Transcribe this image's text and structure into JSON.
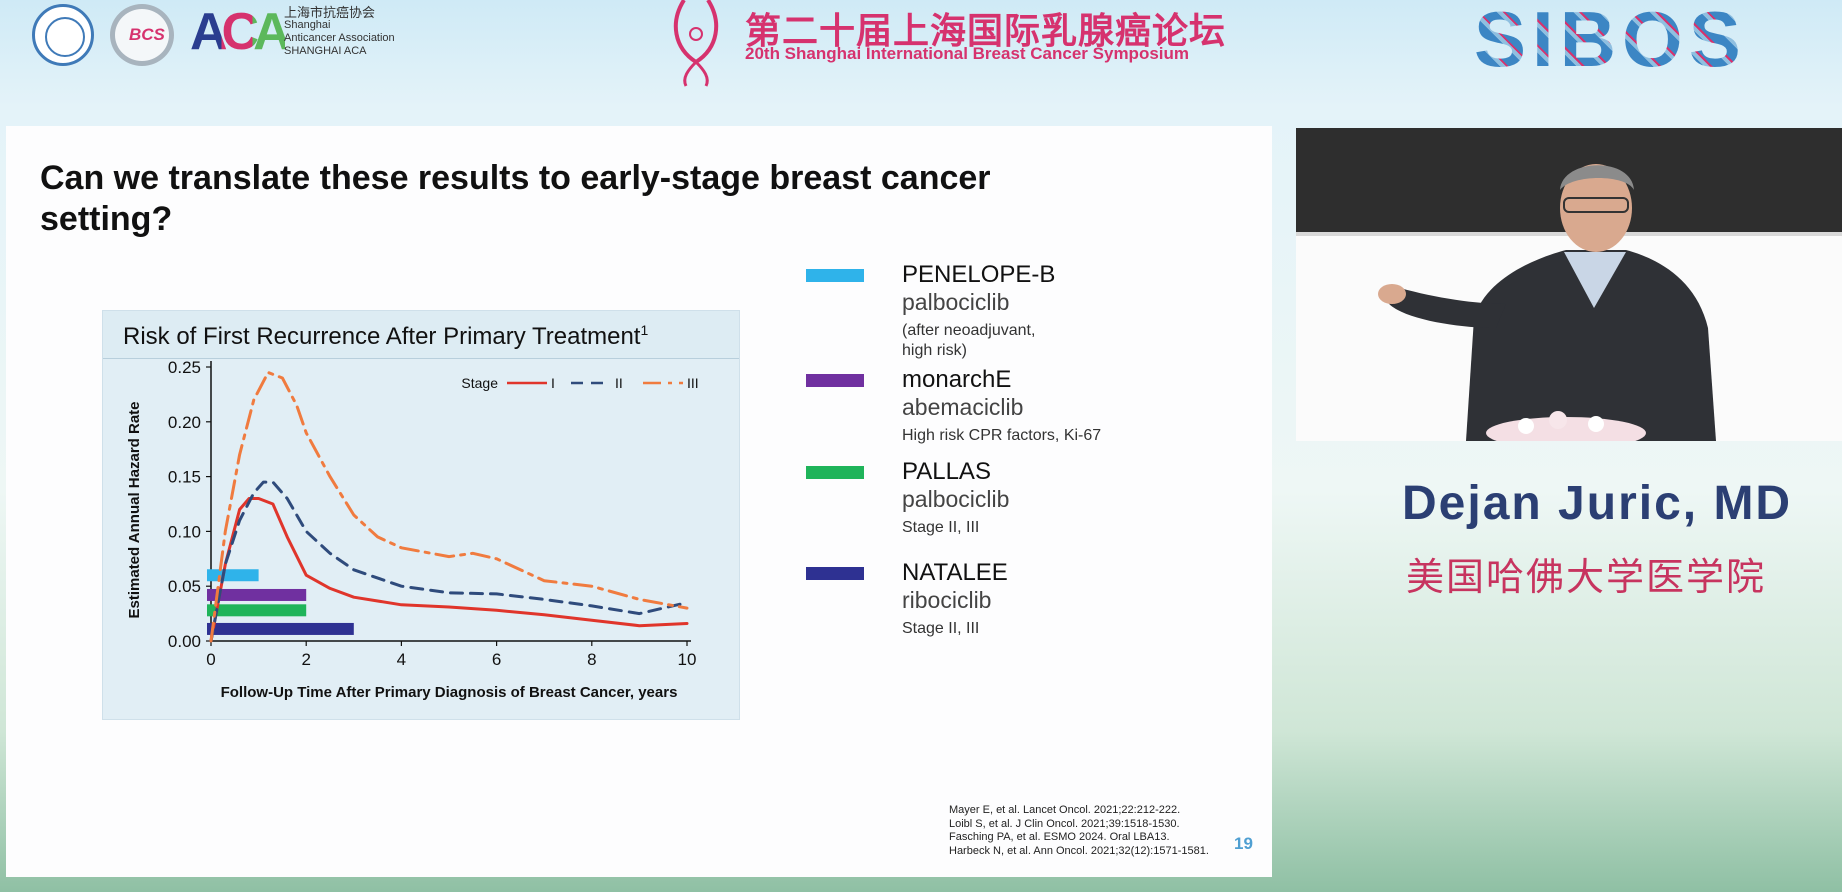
{
  "header": {
    "org_name_cn": "上海市抗癌协会",
    "org_name_en_1": "Shanghai",
    "org_name_en_2": "Anticancer Association",
    "org_name_en_3": "SHANGHAI ACA",
    "bcs_logo_text": "BCS",
    "aca_logo_text": "ACA",
    "symposium_cn": "第二十届上海国际乳腺癌论坛",
    "symposium_en": "20th Shanghai International Breast Cancer Symposium",
    "sibos_logo_text": "SIBOS"
  },
  "slide": {
    "title": "Can we translate these results to early-stage breast cancer setting?",
    "page_number": "19",
    "references": [
      "Mayer E, et al. Lancet Oncol. 2021;22:212-222.",
      "Loibl S, et al. J Clin Oncol. 2021;39:1518-1530.",
      "Fasching PA, et al. ESMO 2024. Oral LBA13.",
      "Harbeck N, et al. Ann Oncol. 2021;32(12):1571-1581."
    ],
    "trials": [
      {
        "name": "PENELOPE-B",
        "drug": "palbociclib",
        "note": "(after neoadjuvant, high risk)",
        "color": "#2fb3ea"
      },
      {
        "name": "monarchE",
        "drug": "abemaciclib",
        "note": "High risk CPR factors, Ki-67",
        "color": "#7030a0"
      },
      {
        "name": "PALLAS",
        "drug": "palbociclib",
        "note": "Stage II, III",
        "color": "#1fb45a"
      },
      {
        "name": "NATALEE",
        "drug": "ribociclib",
        "note": "Stage II, III",
        "color": "#2e3192"
      }
    ]
  },
  "chart_data": {
    "type": "line",
    "title": "Risk of First Recurrence After Primary Treatment",
    "title_superscript": "1",
    "xlabel": "Follow-Up Time After Primary Diagnosis of Breast Cancer, years",
    "ylabel": "Estimated Annual Hazard Rate",
    "xlim": [
      0,
      10
    ],
    "ylim": [
      0,
      0.25
    ],
    "xticks": [
      "0",
      "2",
      "4",
      "6",
      "8",
      "10"
    ],
    "yticks": [
      "0.00",
      "0.05",
      "0.10",
      "0.15",
      "0.20",
      "0.25"
    ],
    "legend_title": "Stage",
    "legend_position": "top-right",
    "series": [
      {
        "name": "I",
        "color": "#e0352b",
        "style": "solid",
        "x": [
          0,
          0.3,
          0.6,
          0.8,
          1.0,
          1.3,
          1.6,
          2.0,
          2.5,
          3.0,
          4.0,
          5.0,
          6.0,
          7.0,
          8.0,
          9.0,
          10.0
        ],
        "y": [
          0.0,
          0.07,
          0.12,
          0.13,
          0.13,
          0.125,
          0.095,
          0.06,
          0.048,
          0.04,
          0.033,
          0.031,
          0.028,
          0.024,
          0.019,
          0.014,
          0.016
        ]
      },
      {
        "name": "II",
        "color": "#2f4b7c",
        "style": "dashed",
        "x": [
          0,
          0.3,
          0.6,
          0.9,
          1.1,
          1.3,
          1.6,
          2.0,
          2.5,
          3.0,
          4.0,
          5.0,
          6.0,
          7.0,
          8.0,
          9.0,
          10.0
        ],
        "y": [
          0.0,
          0.07,
          0.11,
          0.135,
          0.145,
          0.145,
          0.13,
          0.1,
          0.08,
          0.065,
          0.05,
          0.044,
          0.043,
          0.038,
          0.032,
          0.025,
          0.035
        ]
      },
      {
        "name": "III",
        "color": "#f07b3f",
        "style": "dashdot",
        "x": [
          0,
          0.3,
          0.6,
          0.9,
          1.2,
          1.5,
          1.8,
          2.0,
          2.5,
          3.0,
          3.5,
          4.0,
          5.0,
          5.5,
          6.0,
          7.0,
          8.0,
          9.0,
          10.0
        ],
        "y": [
          0.0,
          0.1,
          0.17,
          0.22,
          0.245,
          0.24,
          0.215,
          0.19,
          0.15,
          0.115,
          0.095,
          0.085,
          0.077,
          0.08,
          0.075,
          0.055,
          0.05,
          0.038,
          0.03
        ]
      }
    ],
    "bars": [
      {
        "name": "PENELOPE-B",
        "x_start": 0,
        "x_end": 1,
        "y": 0.06,
        "color": "#2fb3ea"
      },
      {
        "name": "monarchE",
        "x_start": 0,
        "x_end": 2,
        "y": 0.042,
        "color": "#7030a0"
      },
      {
        "name": "PALLAS",
        "x_start": 0,
        "x_end": 2,
        "y": 0.028,
        "color": "#1fb45a"
      },
      {
        "name": "NATALEE",
        "x_start": 0,
        "x_end": 3,
        "y": 0.011,
        "color": "#2e3192"
      }
    ]
  },
  "speaker": {
    "name": "Dejan Juric, MD",
    "institution": "美国哈佛大学医学院"
  }
}
